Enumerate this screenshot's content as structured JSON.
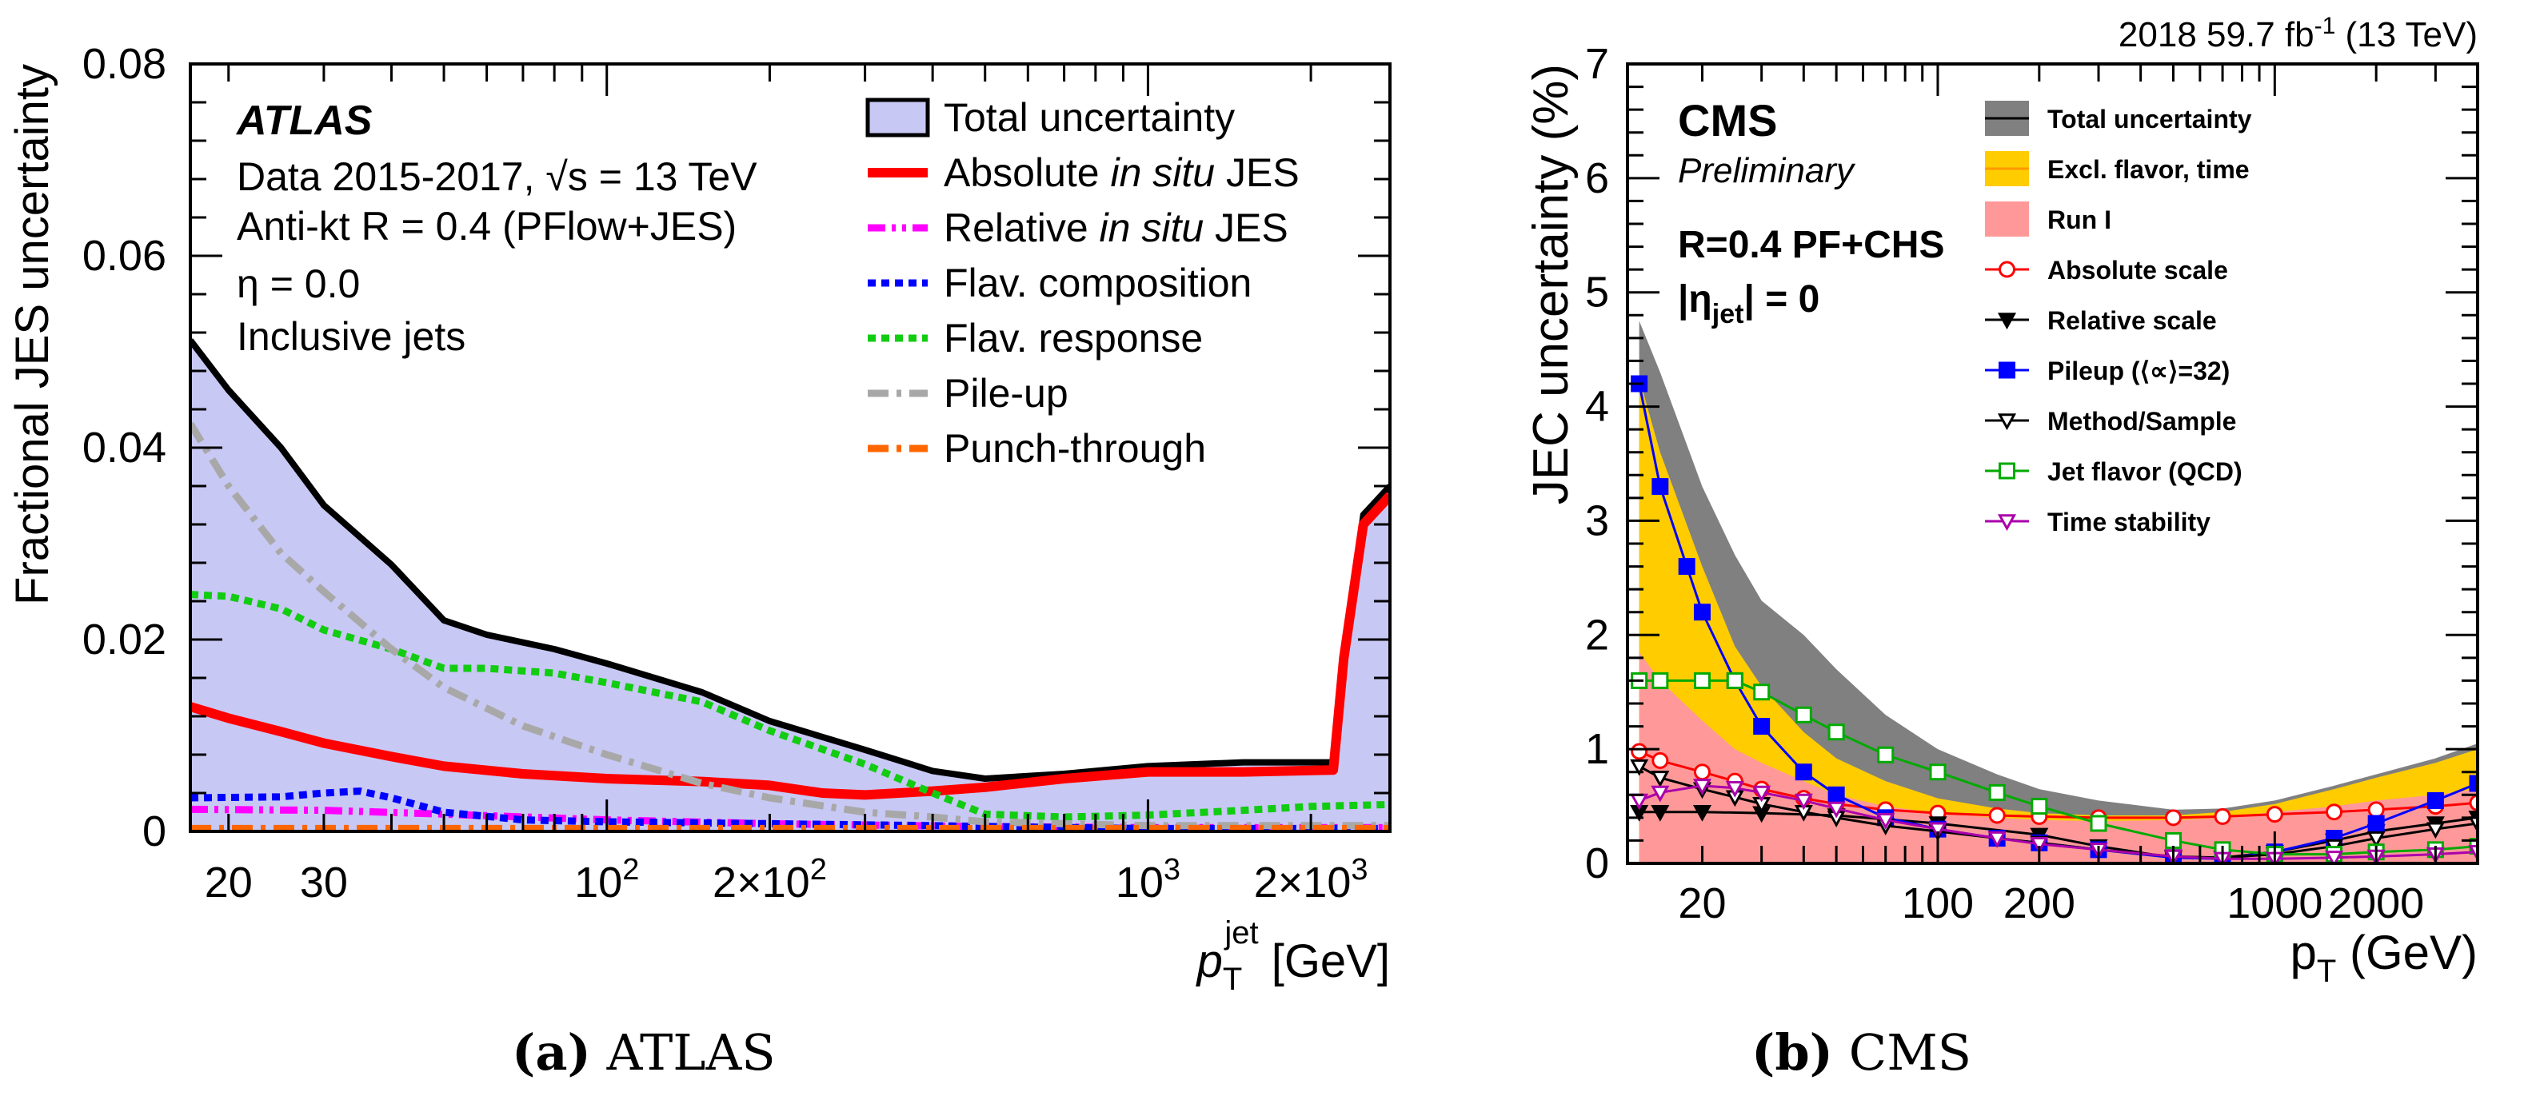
{
  "figure": {
    "caption_a_label": "(a)",
    "caption_a_text": "ATLAS",
    "caption_b_label": "(b)",
    "caption_b_text": "CMS"
  },
  "chart_data": [
    {
      "type": "area",
      "panel": "a",
      "title": "ATLAS",
      "info_lines": [
        "Data 2015-2017, √s = 13 TeV",
        "Anti-kt R = 0.4 (PFlow+JES)",
        "η = 0.0",
        "Inclusive jets"
      ],
      "xlabel": "p_T^jet [GeV]",
      "ylabel": "Fractional JES uncertainty",
      "xscale": "log",
      "xlim": [
        17,
        2800
      ],
      "ylim": [
        0,
        0.08
      ],
      "yticks": [
        "0",
        "0.02",
        "0.04",
        "0.06",
        "0.08"
      ],
      "xtick_labels": [
        {
          "x": 20,
          "label": "20"
        },
        {
          "x": 30,
          "label": "30"
        },
        {
          "x": 100,
          "label": "10²"
        },
        {
          "x": 200,
          "label": "2×10²"
        },
        {
          "x": 1000,
          "label": "10³"
        },
        {
          "x": 2000,
          "label": "2×10³"
        }
      ],
      "legend_position": "top-right",
      "series": [
        {
          "name": "Total uncertainty",
          "style": "band",
          "color": "#000000",
          "fill": "#c8c8f4",
          "x": [
            17,
            20,
            25,
            30,
            40,
            50,
            60,
            80,
            100,
            150,
            200,
            300,
            400,
            500,
            700,
            1000,
            1500,
            2200,
            2300,
            2500,
            2800
          ],
          "y": [
            0.0512,
            0.046,
            0.04,
            0.034,
            0.0278,
            0.022,
            0.0205,
            0.019,
            0.0175,
            0.0145,
            0.0115,
            0.0085,
            0.0063,
            0.0055,
            0.006,
            0.0068,
            0.0072,
            0.0072,
            0.018,
            0.033,
            0.036
          ]
        },
        {
          "name": "Absolute in situ JES",
          "style": "solid",
          "color": "#ff0000",
          "x": [
            17,
            20,
            25,
            30,
            40,
            50,
            70,
            100,
            150,
            200,
            250,
            300,
            400,
            500,
            700,
            1000,
            1500,
            2200,
            2300,
            2500,
            2800
          ],
          "y": [
            0.013,
            0.0118,
            0.0104,
            0.0092,
            0.0078,
            0.0068,
            0.006,
            0.0055,
            0.0052,
            0.0048,
            0.004,
            0.0038,
            0.0042,
            0.0046,
            0.0055,
            0.0062,
            0.0062,
            0.0064,
            0.018,
            0.032,
            0.035
          ]
        },
        {
          "name": "Relative in situ JES",
          "style": "dash-dot-dot",
          "color": "#ff00ff",
          "x": [
            17,
            30,
            50,
            100,
            200,
            500,
            1000,
            2800
          ],
          "y": [
            0.0023,
            0.0022,
            0.0018,
            0.0012,
            0.0008,
            0.0005,
            0.0004,
            0.0004
          ]
        },
        {
          "name": "Flav. composition",
          "style": "dotted",
          "color": "#0000ff",
          "x": [
            17,
            25,
            30,
            35,
            40,
            50,
            70,
            100,
            200,
            400,
            700,
            1000,
            2800
          ],
          "y": [
            0.0035,
            0.0036,
            0.004,
            0.0042,
            0.0035,
            0.002,
            0.0012,
            0.001,
            0.0008,
            0.0006,
            0.0004,
            0.0003,
            0.0003
          ]
        },
        {
          "name": "Flav. response",
          "style": "dotted",
          "color": "#11cc11",
          "x": [
            17,
            20,
            25,
            30,
            40,
            50,
            60,
            80,
            100,
            150,
            200,
            300,
            400,
            500,
            700,
            1000,
            1500,
            2000,
            2800
          ],
          "y": [
            0.0247,
            0.0245,
            0.0232,
            0.021,
            0.019,
            0.017,
            0.017,
            0.0165,
            0.0155,
            0.0135,
            0.0105,
            0.007,
            0.004,
            0.0018,
            0.0015,
            0.0017,
            0.0022,
            0.0026,
            0.0028
          ]
        },
        {
          "name": "Pile-up",
          "style": "dash-dot",
          "color": "#a8a8a8",
          "x": [
            17,
            20,
            25,
            30,
            40,
            50,
            70,
            100,
            150,
            200,
            300,
            400,
            500,
            700,
            1000,
            2800
          ],
          "y": [
            0.0425,
            0.036,
            0.029,
            0.025,
            0.019,
            0.015,
            0.011,
            0.008,
            0.005,
            0.0035,
            0.002,
            0.0015,
            0.001,
            0.0008,
            0.0006,
            0.0006
          ]
        },
        {
          "name": "Punch-through",
          "style": "dash-dot",
          "color": "#ff6600",
          "x": [
            17,
            100,
            500,
            1000,
            2800
          ],
          "y": [
            0.0003,
            0.0003,
            0.0003,
            0.0003,
            0.0003
          ]
        }
      ]
    },
    {
      "type": "area",
      "panel": "b",
      "title": "CMS",
      "subtitle": "Preliminary",
      "top_label": "2018 59.7 fb⁻¹ (13 TeV)",
      "info_lines": [
        "R=0.4 PF+CHS",
        "|ηjet| = 0"
      ],
      "xlabel": "p_T (GeV)",
      "ylabel": "JEC uncertainty (%)",
      "xscale": "log",
      "xlim": [
        12,
        4000
      ],
      "ylim": [
        0,
        7
      ],
      "yticks": [
        "0",
        "1",
        "2",
        "3",
        "4",
        "5",
        "6",
        "7"
      ],
      "xtick_labels": [
        {
          "x": 20,
          "label": "20"
        },
        {
          "x": 100,
          "label": "100"
        },
        {
          "x": 200,
          "label": "200"
        },
        {
          "x": 1000,
          "label": "1000"
        },
        {
          "x": 2000,
          "label": "2000"
        }
      ],
      "legend_position": "top-right",
      "series": [
        {
          "name": "Total uncertainty",
          "style": "band",
          "color": "#808080",
          "x": [
            13,
            15,
            20,
            25,
            30,
            40,
            50,
            70,
            100,
            150,
            200,
            300,
            500,
            700,
            1000,
            1500,
            2000,
            3000,
            4000
          ],
          "y": [
            4.75,
            4.3,
            3.3,
            2.7,
            2.3,
            2.0,
            1.7,
            1.3,
            1.0,
            0.78,
            0.65,
            0.55,
            0.47,
            0.48,
            0.55,
            0.68,
            0.78,
            0.92,
            1.05
          ]
        },
        {
          "name": "Excl. flavor, time",
          "style": "band",
          "color": "#ffcc00",
          "x": [
            13,
            15,
            20,
            25,
            30,
            40,
            50,
            70,
            100,
            150,
            200,
            300,
            500,
            700,
            1000,
            1500,
            2000,
            3000,
            4000
          ],
          "y": [
            4.25,
            3.6,
            2.6,
            1.9,
            1.55,
            1.15,
            0.92,
            0.72,
            0.57,
            0.48,
            0.44,
            0.42,
            0.42,
            0.45,
            0.52,
            0.65,
            0.75,
            0.88,
            1.0
          ]
        },
        {
          "name": "Run I",
          "style": "band",
          "color": "#ff9999",
          "x": [
            13,
            15,
            20,
            25,
            30,
            40,
            50,
            70,
            100,
            150,
            200,
            300,
            500,
            700,
            1000,
            1500,
            2000,
            3000,
            4000
          ],
          "y": [
            1.85,
            1.6,
            1.25,
            1.0,
            0.88,
            0.72,
            0.6,
            0.5,
            0.44,
            0.4,
            0.38,
            0.37,
            0.38,
            0.4,
            0.45,
            0.5,
            0.55,
            0.6,
            0.65
          ]
        },
        {
          "name": "Absolute scale",
          "style": "open-circle",
          "color": "#ff0000",
          "x": [
            13,
            15,
            20,
            25,
            30,
            40,
            50,
            70,
            100,
            150,
            200,
            300,
            500,
            700,
            1000,
            1500,
            2000,
            3000,
            4000
          ],
          "y": [
            0.98,
            0.9,
            0.8,
            0.72,
            0.65,
            0.57,
            0.52,
            0.47,
            0.44,
            0.42,
            0.41,
            0.4,
            0.4,
            0.41,
            0.43,
            0.45,
            0.47,
            0.5,
            0.53
          ]
        },
        {
          "name": "Relative scale",
          "style": "filled-triangle-down",
          "color": "#000000",
          "x": [
            13,
            15,
            20,
            30,
            50,
            100,
            200,
            300,
            500,
            700,
            1000,
            1500,
            2000,
            3000,
            4000
          ],
          "y": [
            0.45,
            0.45,
            0.45,
            0.44,
            0.42,
            0.35,
            0.25,
            0.15,
            0.05,
            0.05,
            0.1,
            0.2,
            0.28,
            0.35,
            0.4
          ]
        },
        {
          "name": "Pileup (⟨∝⟩=32)",
          "style": "filled-square",
          "color": "#0000ff",
          "x": [
            13,
            15,
            18,
            20,
            25,
            30,
            40,
            50,
            70,
            100,
            150,
            200,
            300,
            500,
            700,
            1000,
            1500,
            2000,
            3000,
            4000
          ],
          "y": [
            4.2,
            3.3,
            2.6,
            2.2,
            1.6,
            1.2,
            0.8,
            0.6,
            0.4,
            0.3,
            0.22,
            0.18,
            0.12,
            0.05,
            0.04,
            0.1,
            0.22,
            0.35,
            0.55,
            0.7
          ]
        },
        {
          "name": "Method/Sample",
          "style": "open-triangle-down",
          "color": "#000000",
          "x": [
            13,
            15,
            20,
            25,
            30,
            40,
            50,
            70,
            100,
            150,
            200,
            300,
            500,
            700,
            1000,
            1500,
            2000,
            3000,
            4000
          ],
          "y": [
            0.85,
            0.75,
            0.65,
            0.58,
            0.52,
            0.45,
            0.4,
            0.33,
            0.28,
            0.22,
            0.18,
            0.12,
            0.06,
            0.05,
            0.08,
            0.15,
            0.22,
            0.3,
            0.35
          ]
        },
        {
          "name": "Jet flavor (QCD)",
          "style": "open-square",
          "color": "#00aa00",
          "x": [
            13,
            15,
            20,
            25,
            30,
            40,
            50,
            70,
            100,
            150,
            200,
            300,
            500,
            700,
            1000,
            1500,
            2000,
            3000,
            4000
          ],
          "y": [
            1.6,
            1.6,
            1.6,
            1.6,
            1.5,
            1.3,
            1.15,
            0.95,
            0.8,
            0.62,
            0.5,
            0.35,
            0.2,
            0.12,
            0.08,
            0.08,
            0.1,
            0.12,
            0.15
          ]
        },
        {
          "name": "Time stability",
          "style": "open-triangle-down",
          "color": "#aa00aa",
          "x": [
            13,
            15,
            20,
            25,
            30,
            40,
            50,
            70,
            100,
            150,
            200,
            300,
            500,
            700,
            1000,
            1500,
            2000,
            3000,
            4000
          ],
          "y": [
            0.55,
            0.62,
            0.68,
            0.66,
            0.62,
            0.55,
            0.48,
            0.38,
            0.3,
            0.22,
            0.17,
            0.12,
            0.06,
            0.04,
            0.04,
            0.05,
            0.06,
            0.08,
            0.1
          ]
        }
      ]
    }
  ]
}
